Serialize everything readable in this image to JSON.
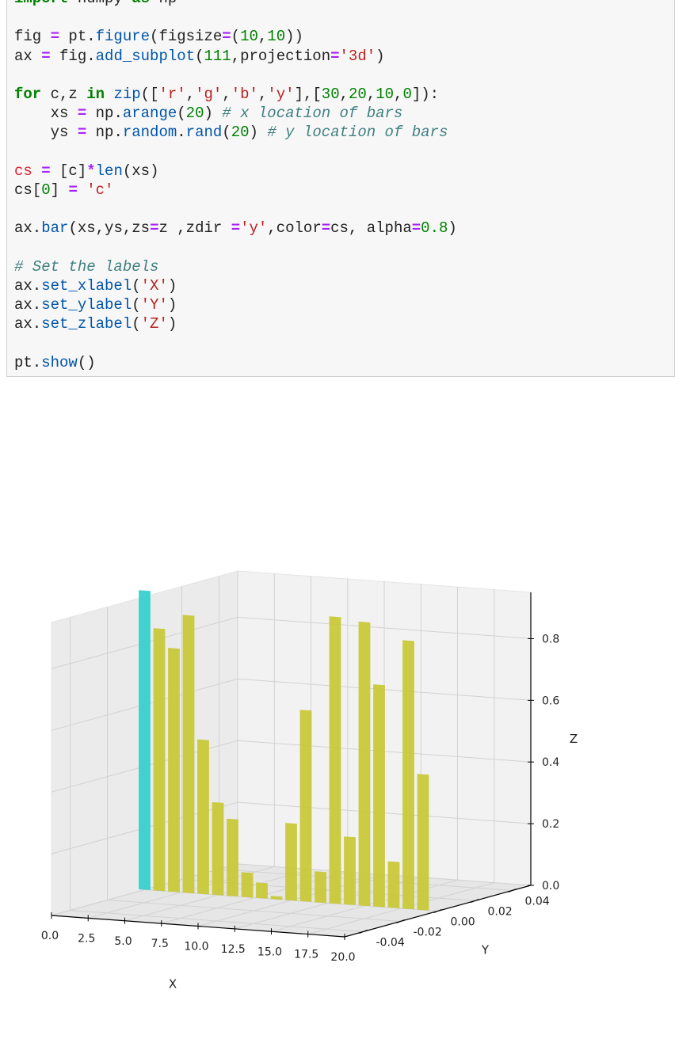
{
  "code_cell": {
    "lines": [
      [
        {
          "c": "kw",
          "t": "import"
        },
        {
          "t": " numpy "
        },
        {
          "c": "kw",
          "t": "as"
        },
        {
          "t": " np"
        }
      ],
      [],
      [
        {
          "t": "fig "
        },
        {
          "c": "op",
          "t": "="
        },
        {
          "t": " pt."
        },
        {
          "c": "fn",
          "t": "figure"
        },
        {
          "t": "(figsize"
        },
        {
          "c": "op",
          "t": "="
        },
        {
          "t": "("
        },
        {
          "c": "nm",
          "t": "10"
        },
        {
          "t": ","
        },
        {
          "c": "nm",
          "t": "10"
        },
        {
          "t": "))"
        }
      ],
      [
        {
          "t": "ax "
        },
        {
          "c": "op",
          "t": "="
        },
        {
          "t": " fig."
        },
        {
          "c": "fn",
          "t": "add_subplot"
        },
        {
          "t": "("
        },
        {
          "c": "nm",
          "t": "111"
        },
        {
          "t": ",projection"
        },
        {
          "c": "op",
          "t": "="
        },
        {
          "c": "st",
          "t": "'3d'"
        },
        {
          "t": ")"
        }
      ],
      [],
      [
        {
          "c": "kw",
          "t": "for"
        },
        {
          "t": " c,z "
        },
        {
          "c": "kw",
          "t": "in"
        },
        {
          "t": " "
        },
        {
          "c": "fn",
          "t": "zip"
        },
        {
          "t": "(["
        },
        {
          "c": "st",
          "t": "'r'"
        },
        {
          "t": ","
        },
        {
          "c": "st",
          "t": "'g'"
        },
        {
          "t": ","
        },
        {
          "c": "st",
          "t": "'b'"
        },
        {
          "t": ","
        },
        {
          "c": "st",
          "t": "'y'"
        },
        {
          "t": "],["
        },
        {
          "c": "nm",
          "t": "30"
        },
        {
          "t": ","
        },
        {
          "c": "nm",
          "t": "20"
        },
        {
          "t": ","
        },
        {
          "c": "nm",
          "t": "10"
        },
        {
          "t": ","
        },
        {
          "c": "nm",
          "t": "0"
        },
        {
          "t": "]):"
        }
      ],
      [
        {
          "t": "    xs "
        },
        {
          "c": "op",
          "t": "="
        },
        {
          "t": " np."
        },
        {
          "c": "fn",
          "t": "arange"
        },
        {
          "t": "("
        },
        {
          "c": "nm",
          "t": "20"
        },
        {
          "t": ") "
        },
        {
          "c": "cm",
          "t": "# x location of bars"
        }
      ],
      [
        {
          "t": "    ys "
        },
        {
          "c": "op",
          "t": "="
        },
        {
          "t": " np."
        },
        {
          "c": "fn",
          "t": "random"
        },
        {
          "t": "."
        },
        {
          "c": "fn",
          "t": "rand"
        },
        {
          "t": "("
        },
        {
          "c": "nm",
          "t": "20"
        },
        {
          "t": ") "
        },
        {
          "c": "cm",
          "t": "# y location of bars"
        }
      ],
      [],
      [
        {
          "c": "vr",
          "t": "cs"
        },
        {
          "t": " "
        },
        {
          "c": "op",
          "t": "="
        },
        {
          "t": " [c]"
        },
        {
          "c": "op",
          "t": "*"
        },
        {
          "c": "fn",
          "t": "len"
        },
        {
          "t": "(xs)"
        }
      ],
      [
        {
          "t": "cs["
        },
        {
          "c": "nm",
          "t": "0"
        },
        {
          "t": "] "
        },
        {
          "c": "op",
          "t": "="
        },
        {
          "t": " "
        },
        {
          "c": "st",
          "t": "'c'"
        }
      ],
      [],
      [
        {
          "t": "ax."
        },
        {
          "c": "fn",
          "t": "bar"
        },
        {
          "t": "(xs,ys,zs"
        },
        {
          "c": "op",
          "t": "="
        },
        {
          "t": "z ,zdir "
        },
        {
          "c": "op",
          "t": "="
        },
        {
          "c": "st",
          "t": "'y'"
        },
        {
          "t": ",color"
        },
        {
          "c": "op",
          "t": "="
        },
        {
          "t": "cs, alpha"
        },
        {
          "c": "op",
          "t": "="
        },
        {
          "c": "nm",
          "t": "0.8"
        },
        {
          "t": ")"
        }
      ],
      [],
      [
        {
          "c": "cm",
          "t": "# Set the labels"
        }
      ],
      [
        {
          "t": "ax."
        },
        {
          "c": "fn",
          "t": "set_xlabel"
        },
        {
          "t": "("
        },
        {
          "c": "st",
          "t": "'X'"
        },
        {
          "t": ")"
        }
      ],
      [
        {
          "t": "ax."
        },
        {
          "c": "fn",
          "t": "set_ylabel"
        },
        {
          "t": "("
        },
        {
          "c": "st",
          "t": "'Y'"
        },
        {
          "t": ")"
        }
      ],
      [
        {
          "t": "ax."
        },
        {
          "c": "fn",
          "t": "set_zlabel"
        },
        {
          "t": "("
        },
        {
          "c": "st",
          "t": "'Z'"
        },
        {
          "t": ")"
        }
      ],
      [],
      [
        {
          "t": "pt."
        },
        {
          "c": "fn",
          "t": "show"
        },
        {
          "t": "()"
        }
      ]
    ]
  },
  "chart_data": {
    "type": "bar",
    "projection": "3d",
    "xlabel": "X",
    "ylabel": "Y",
    "zlabel": "Z",
    "x_ticks": [
      "0.0",
      "2.5",
      "5.0",
      "7.5",
      "10.0",
      "12.5",
      "15.0",
      "17.5",
      "20.0"
    ],
    "y_ticks": [
      "-0.04",
      "-0.02",
      "0.00",
      "0.02",
      "0.04"
    ],
    "z_ticks": [
      "0.0",
      "0.2",
      "0.4",
      "0.6",
      "0.8"
    ],
    "xlim": [
      0,
      20
    ],
    "ylim": [
      -0.05,
      0.05
    ],
    "zlim": [
      0,
      0.95
    ],
    "grid": true,
    "x": [
      0,
      1,
      2,
      3,
      4,
      5,
      6,
      7,
      8,
      9,
      10,
      11,
      12,
      13,
      14,
      15,
      16,
      17,
      18,
      19
    ],
    "values": [
      0.97,
      0.85,
      0.79,
      0.9,
      0.5,
      0.3,
      0.25,
      0.08,
      0.05,
      0.01,
      0.25,
      0.62,
      0.1,
      0.93,
      0.22,
      0.92,
      0.72,
      0.15,
      0.87,
      0.44
    ],
    "bar_colors": [
      "#38d0cc",
      "#c8c83a",
      "#c8c83a",
      "#c8c83a",
      "#c8c83a",
      "#c8c83a",
      "#c8c83a",
      "#c8c83a",
      "#c8c83a",
      "#c8c83a",
      "#c8c83a",
      "#c8c83a",
      "#c8c83a",
      "#c8c83a",
      "#c8c83a",
      "#c8c83a",
      "#c8c83a",
      "#c8c83a",
      "#c8c83a",
      "#c8c83a"
    ]
  }
}
